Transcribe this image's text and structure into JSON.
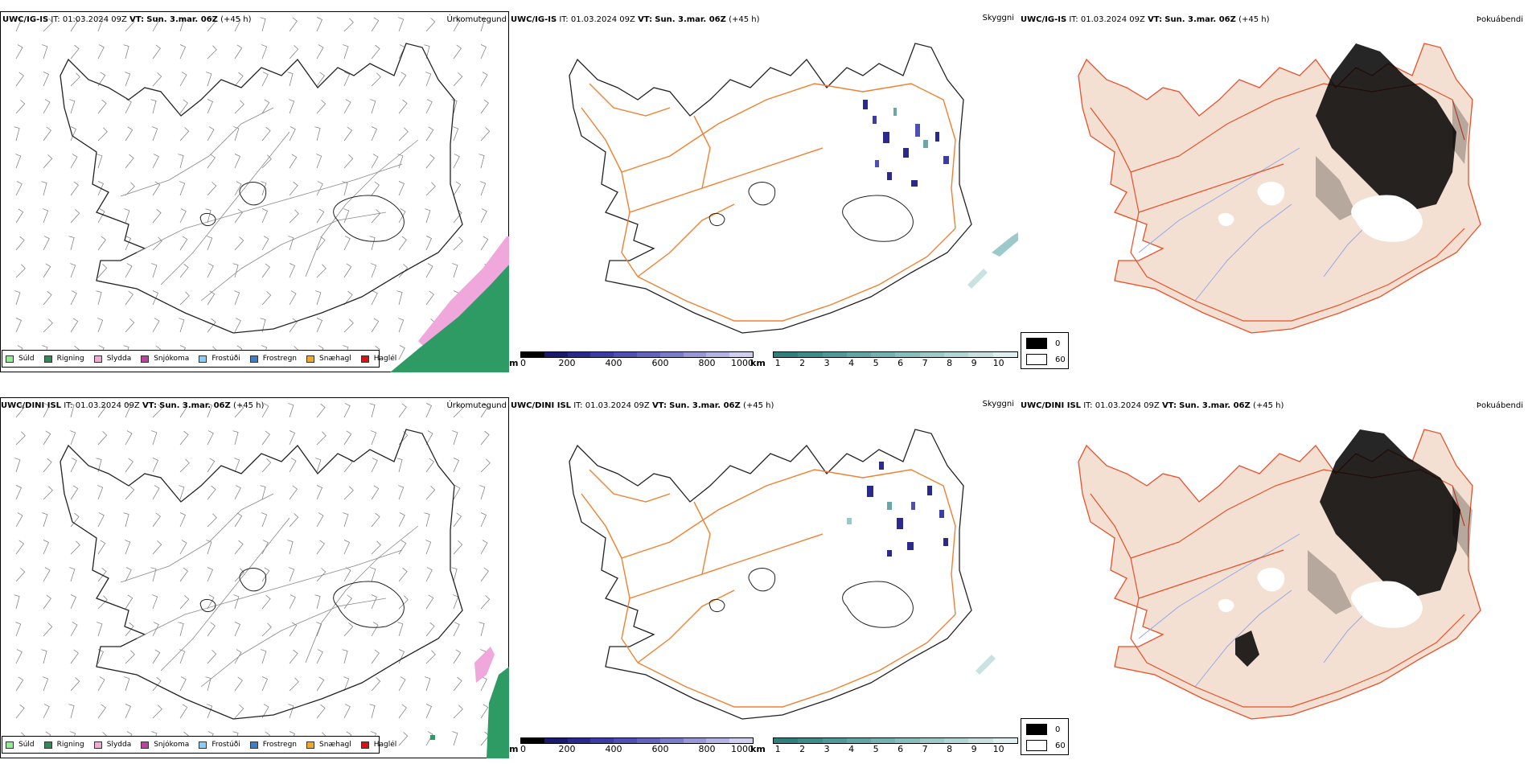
{
  "rows": [
    {
      "model": "UWC/IG-IS",
      "it_label": "IT:",
      "it_value": "01.03.2024 09Z",
      "vt_label": "VT:",
      "vt_value": "Sun. 3.mar. 06Z",
      "lead": "(+45 h)",
      "panels": {
        "precip": {
          "name": "Úrkomutegund"
        },
        "vis": {
          "name": "Skyggni"
        },
        "fog": {
          "name": "Þokuábendi"
        }
      }
    },
    {
      "model": "UWC/DINI ISL",
      "it_label": "IT:",
      "it_value": "01.03.2024 09Z",
      "vt_label": "VT:",
      "vt_value": "Sun. 3.mar. 06Z",
      "lead": "(+45 h)",
      "panels": {
        "precip": {
          "name": "Úrkomutegund"
        },
        "vis": {
          "name": "Skyggni"
        },
        "fog": {
          "name": "Þokuábendi"
        }
      }
    }
  ],
  "precip_legend": [
    {
      "label": "Súld",
      "color": "#90ee90"
    },
    {
      "label": "Rigning",
      "color": "#2e8b57"
    },
    {
      "label": "Slydda",
      "color": "#f4a6d7"
    },
    {
      "label": "Snjókoma",
      "color": "#c040a0"
    },
    {
      "label": "Frostúði",
      "color": "#87cefa"
    },
    {
      "label": "Frostregn",
      "color": "#3a7fc8"
    },
    {
      "label": "Snæhagl",
      "color": "#f5a623"
    },
    {
      "label": "Haglél",
      "color": "#e01010"
    }
  ],
  "vis_m_scale": {
    "unit": "m",
    "ticks": [
      "0",
      "200",
      "400",
      "600",
      "800",
      "1000"
    ],
    "colors": [
      "#000000",
      "#1a1a6e",
      "#2a2a8e",
      "#3c3ca6",
      "#5050b4",
      "#6464c0",
      "#7c7ccc",
      "#9898d8",
      "#b4b4e4",
      "#d0d0ee"
    ]
  },
  "vis_km_scale": {
    "unit": "km",
    "ticks": [
      "1",
      "2",
      "3",
      "4",
      "5",
      "6",
      "7",
      "8",
      "9",
      "10"
    ],
    "colors": [
      "#2f7f7f",
      "#3d8c8c",
      "#4e9999",
      "#60a6a6",
      "#74b2b2",
      "#88bebe",
      "#9ccaca",
      "#b2d6d6",
      "#c8e2e2",
      "#e0f0f0"
    ]
  },
  "fog_legend": [
    {
      "label": "0",
      "color": "#000000"
    },
    {
      "label": "60",
      "color": "#ffffff"
    }
  ],
  "colors": {
    "land_fog": "#f3e0d2",
    "roads": "#f08030",
    "roads_fog": "#e8502a",
    "rivers_fog": "#8fa8ee",
    "rain": "#2e9a64",
    "sleet": "#f0a8dc"
  }
}
